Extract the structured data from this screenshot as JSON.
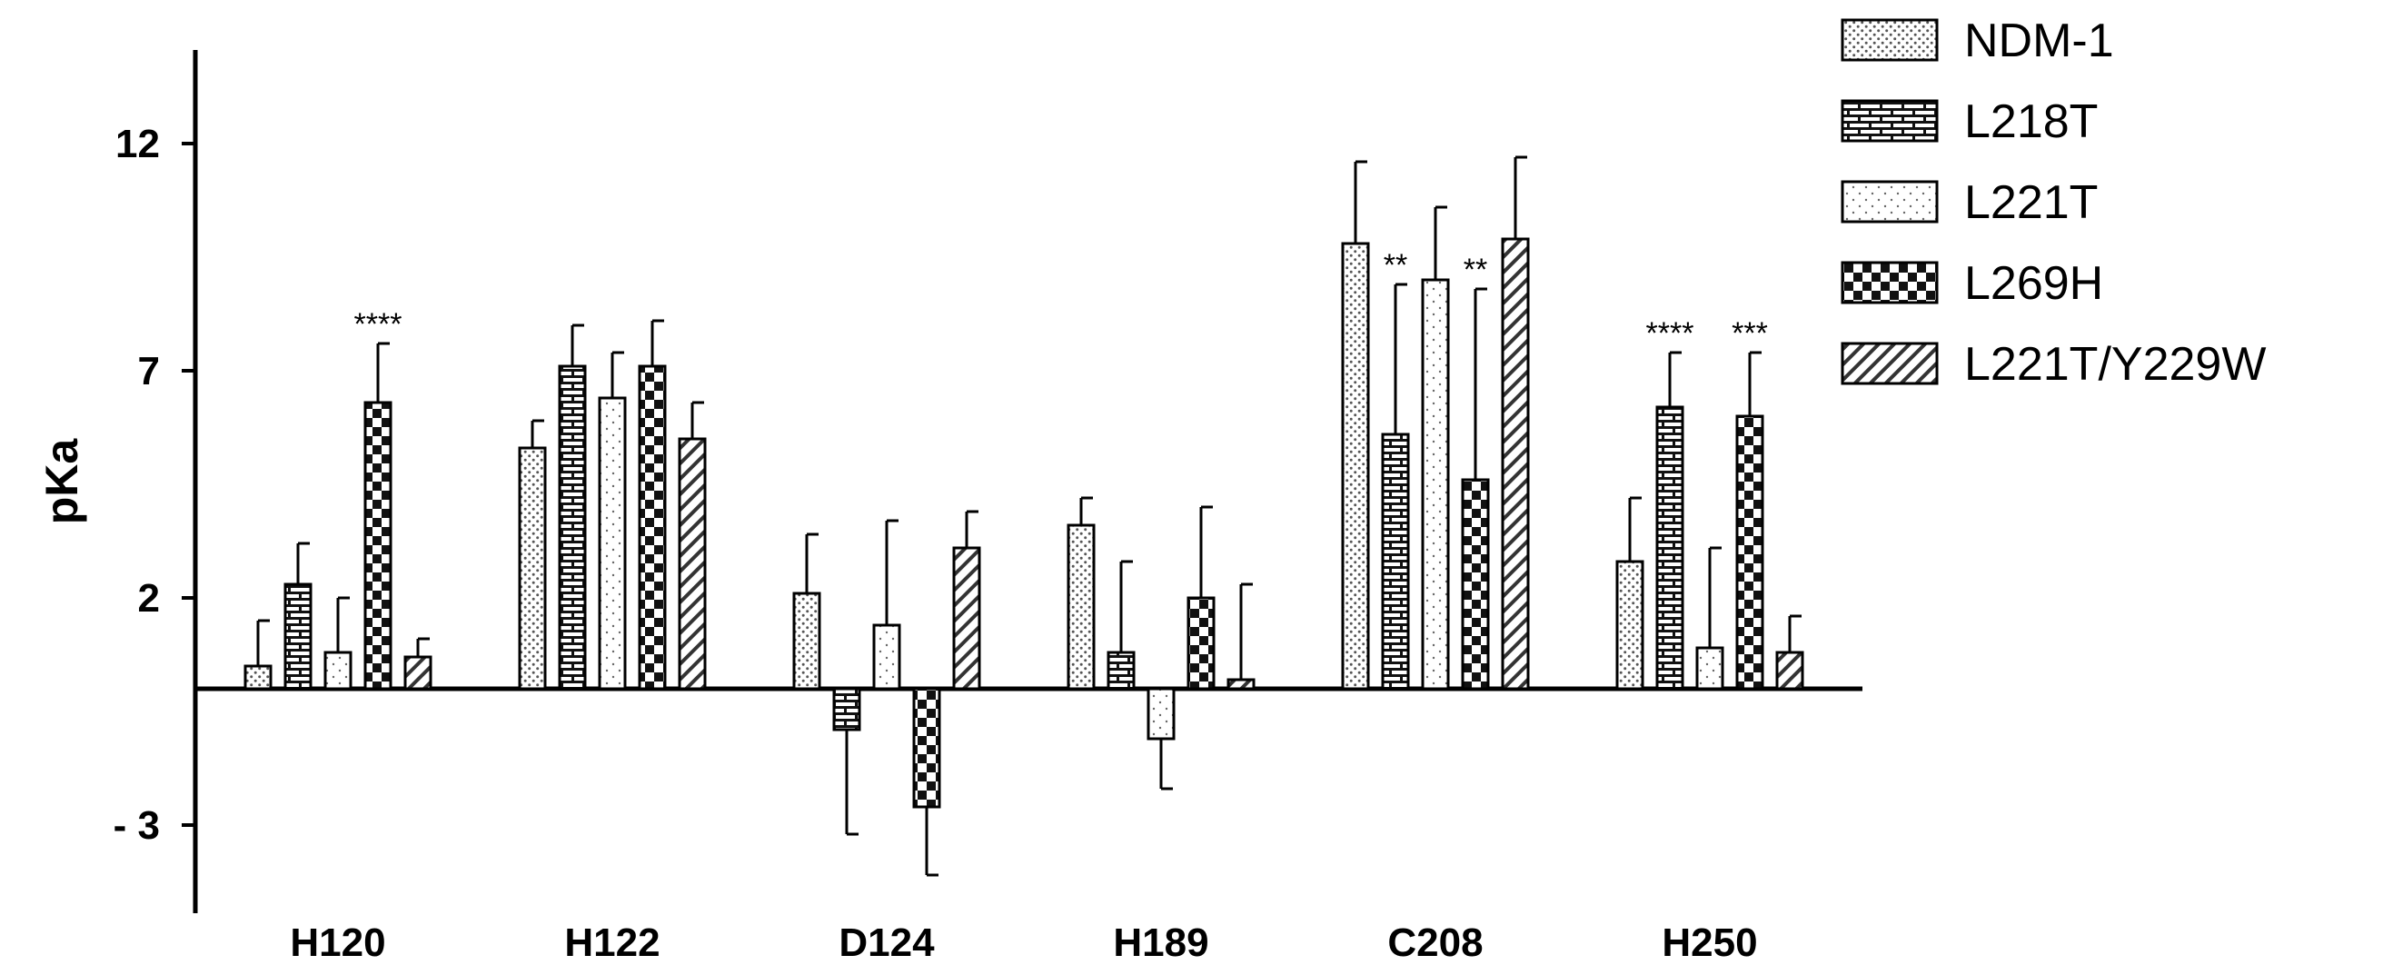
{
  "chart_data": {
    "type": "bar",
    "title": "",
    "xlabel": "",
    "ylabel": "pKa",
    "ylim": [
      -5,
      14
    ],
    "yticks": [
      12,
      7,
      2,
      -3
    ],
    "ytick_labels": [
      "12",
      "7",
      "2",
      "- 3"
    ],
    "grid": false,
    "legend_position": "top-right",
    "categories": [
      "H120",
      "H122",
      "D124",
      "H189",
      "C208",
      "H250"
    ],
    "series": [
      {
        "name": "NDM-1",
        "pattern": "dots-dense",
        "values": [
          0.5,
          5.3,
          2.1,
          3.6,
          9.8,
          2.8
        ],
        "errors": [
          1.0,
          0.6,
          1.3,
          0.6,
          1.8,
          1.4
        ]
      },
      {
        "name": "L218T",
        "pattern": "brick",
        "values": [
          2.3,
          7.1,
          -0.9,
          0.8,
          5.6,
          6.2
        ],
        "errors": [
          0.9,
          0.9,
          2.3,
          2.0,
          3.3,
          1.2
        ]
      },
      {
        "name": "L221T",
        "pattern": "dots-sparse",
        "values": [
          0.8,
          6.4,
          1.4,
          -1.1,
          9.0,
          0.9
        ],
        "errors": [
          1.2,
          1.0,
          2.3,
          1.1,
          1.6,
          2.2
        ]
      },
      {
        "name": "L269H",
        "pattern": "checker",
        "values": [
          6.3,
          7.1,
          -2.6,
          2.0,
          4.6,
          6.0
        ],
        "errors": [
          1.3,
          1.0,
          1.5,
          2.0,
          4.2,
          1.4
        ]
      },
      {
        "name": "L221T/Y229W",
        "pattern": "diagonal",
        "values": [
          0.7,
          5.5,
          3.1,
          0.2,
          9.9,
          0.8
        ],
        "errors": [
          0.4,
          0.8,
          0.8,
          2.1,
          1.8,
          0.8
        ]
      }
    ],
    "annotations": [
      {
        "category": "H120",
        "series": "L269H",
        "text": "****"
      },
      {
        "category": "C208",
        "series": "L218T",
        "text": "**"
      },
      {
        "category": "C208",
        "series": "L269H",
        "text": "**"
      },
      {
        "category": "H250",
        "series": "L218T",
        "text": "****"
      },
      {
        "category": "H250",
        "series": "L269H",
        "text": "***"
      }
    ]
  }
}
